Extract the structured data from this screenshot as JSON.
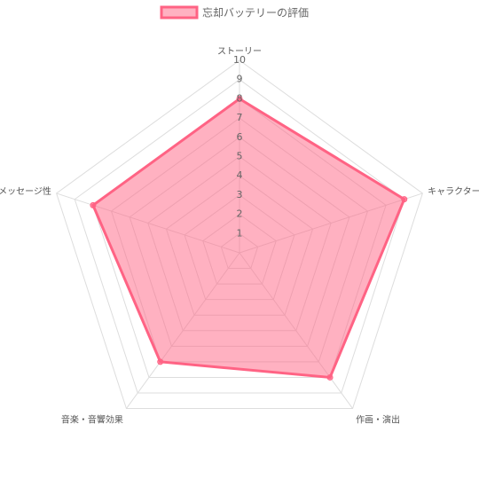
{
  "chart_data": {
    "type": "radar",
    "categories": [
      "ストーリー",
      "キャラクター",
      "作画・演出",
      "音楽・音響効果",
      "メッセージ性"
    ],
    "series": [
      {
        "name": "忘却バッテリーの評価",
        "color": "#ff6384",
        "values": [
          8,
          9,
          8,
          7,
          8
        ]
      }
    ],
    "rlim": [
      0,
      10
    ],
    "rticks": [
      1,
      2,
      3,
      4,
      5,
      6,
      7,
      8,
      9,
      10
    ],
    "grid": true,
    "legend": "top"
  }
}
